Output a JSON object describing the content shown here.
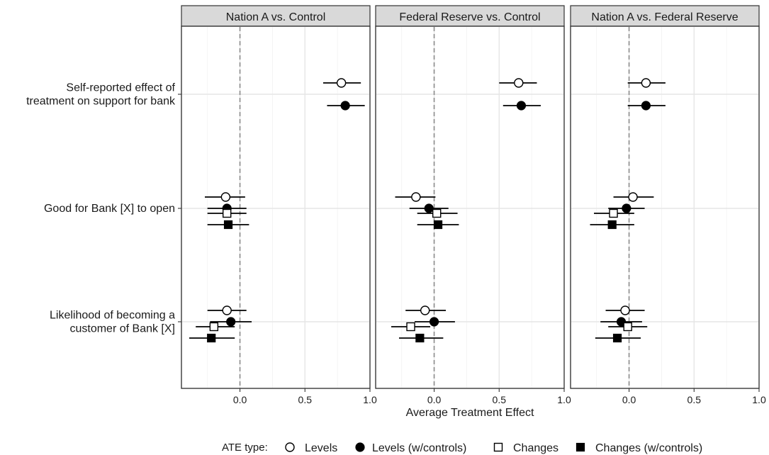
{
  "chart_data": {
    "type": "forest-plot",
    "xlabel": "Average Treatment Effect",
    "xlim": [
      -0.45,
      1.0
    ],
    "x_ticks": [
      0.0,
      0.5,
      1.0
    ],
    "x_tick_labels": [
      "0.0",
      "0.5",
      "1.0"
    ],
    "reference_line": 0.0,
    "grid": true,
    "outcomes": [
      {
        "id": "support",
        "label_lines": [
          "Self-reported effect of",
          "treatment on support for bank"
        ]
      },
      {
        "id": "open",
        "label_lines": [
          "Good for Bank [X] to open"
        ]
      },
      {
        "id": "customer",
        "label_lines": [
          "Likelihood of becoming a",
          "customer of Bank [X]"
        ]
      }
    ],
    "legend": {
      "title": "ATE type:",
      "position": "bottom",
      "entries": [
        {
          "id": "levels",
          "label": "Levels",
          "shape": "open-circle"
        },
        {
          "id": "levels_ctrl",
          "label": "Levels (w/controls)",
          "shape": "filled-circle"
        },
        {
          "id": "changes",
          "label": "Changes",
          "shape": "open-square"
        },
        {
          "id": "changes_ctrl",
          "label": "Changes (w/controls)",
          "shape": "filled-square"
        }
      ]
    },
    "panels": [
      {
        "title": "Nation A vs. Control",
        "estimates": [
          {
            "outcome": "support",
            "type": "levels",
            "est": 0.78,
            "lo": 0.64,
            "hi": 0.93
          },
          {
            "outcome": "support",
            "type": "levels_ctrl",
            "est": 0.81,
            "lo": 0.67,
            "hi": 0.96
          },
          {
            "outcome": "open",
            "type": "levels",
            "est": -0.11,
            "lo": -0.27,
            "hi": 0.04
          },
          {
            "outcome": "open",
            "type": "levels_ctrl",
            "est": -0.1,
            "lo": -0.25,
            "hi": 0.05
          },
          {
            "outcome": "open",
            "type": "changes",
            "est": -0.1,
            "lo": -0.25,
            "hi": 0.05
          },
          {
            "outcome": "open",
            "type": "changes_ctrl",
            "est": -0.09,
            "lo": -0.25,
            "hi": 0.07
          },
          {
            "outcome": "customer",
            "type": "levels",
            "est": -0.1,
            "lo": -0.25,
            "hi": 0.05
          },
          {
            "outcome": "customer",
            "type": "levels_ctrl",
            "est": -0.07,
            "lo": -0.23,
            "hi": 0.09
          },
          {
            "outcome": "customer",
            "type": "changes",
            "est": -0.2,
            "lo": -0.34,
            "hi": -0.04
          },
          {
            "outcome": "customer",
            "type": "changes_ctrl",
            "est": -0.22,
            "lo": -0.39,
            "hi": -0.04
          }
        ]
      },
      {
        "title": "Federal Reserve vs. Control",
        "estimates": [
          {
            "outcome": "support",
            "type": "levels",
            "est": 0.65,
            "lo": 0.5,
            "hi": 0.79
          },
          {
            "outcome": "support",
            "type": "levels_ctrl",
            "est": 0.67,
            "lo": 0.53,
            "hi": 0.82
          },
          {
            "outcome": "open",
            "type": "levels",
            "est": -0.14,
            "lo": -0.3,
            "hi": 0.01
          },
          {
            "outcome": "open",
            "type": "levels_ctrl",
            "est": -0.04,
            "lo": -0.19,
            "hi": 0.11
          },
          {
            "outcome": "open",
            "type": "changes",
            "est": 0.02,
            "lo": -0.13,
            "hi": 0.18
          },
          {
            "outcome": "open",
            "type": "changes_ctrl",
            "est": 0.03,
            "lo": -0.13,
            "hi": 0.19
          },
          {
            "outcome": "customer",
            "type": "levels",
            "est": -0.07,
            "lo": -0.22,
            "hi": 0.09
          },
          {
            "outcome": "customer",
            "type": "levels_ctrl",
            "est": 0.0,
            "lo": -0.15,
            "hi": 0.16
          },
          {
            "outcome": "customer",
            "type": "changes",
            "est": -0.18,
            "lo": -0.33,
            "hi": -0.03
          },
          {
            "outcome": "customer",
            "type": "changes_ctrl",
            "est": -0.11,
            "lo": -0.27,
            "hi": 0.07
          }
        ]
      },
      {
        "title": "Nation A vs. Federal Reserve",
        "estimates": [
          {
            "outcome": "support",
            "type": "levels",
            "est": 0.13,
            "lo": -0.01,
            "hi": 0.28
          },
          {
            "outcome": "support",
            "type": "levels_ctrl",
            "est": 0.13,
            "lo": -0.01,
            "hi": 0.28
          },
          {
            "outcome": "open",
            "type": "levels",
            "est": 0.03,
            "lo": -0.12,
            "hi": 0.19
          },
          {
            "outcome": "open",
            "type": "levels_ctrl",
            "est": -0.02,
            "lo": -0.16,
            "hi": 0.12
          },
          {
            "outcome": "open",
            "type": "changes",
            "est": -0.12,
            "lo": -0.27,
            "hi": 0.04
          },
          {
            "outcome": "open",
            "type": "changes_ctrl",
            "est": -0.13,
            "lo": -0.3,
            "hi": 0.04
          },
          {
            "outcome": "customer",
            "type": "levels",
            "est": -0.03,
            "lo": -0.18,
            "hi": 0.12
          },
          {
            "outcome": "customer",
            "type": "levels_ctrl",
            "est": -0.06,
            "lo": -0.22,
            "hi": 0.1
          },
          {
            "outcome": "customer",
            "type": "changes",
            "est": -0.01,
            "lo": -0.16,
            "hi": 0.14
          },
          {
            "outcome": "customer",
            "type": "changes_ctrl",
            "est": -0.09,
            "lo": -0.26,
            "hi": 0.09
          }
        ]
      }
    ]
  }
}
